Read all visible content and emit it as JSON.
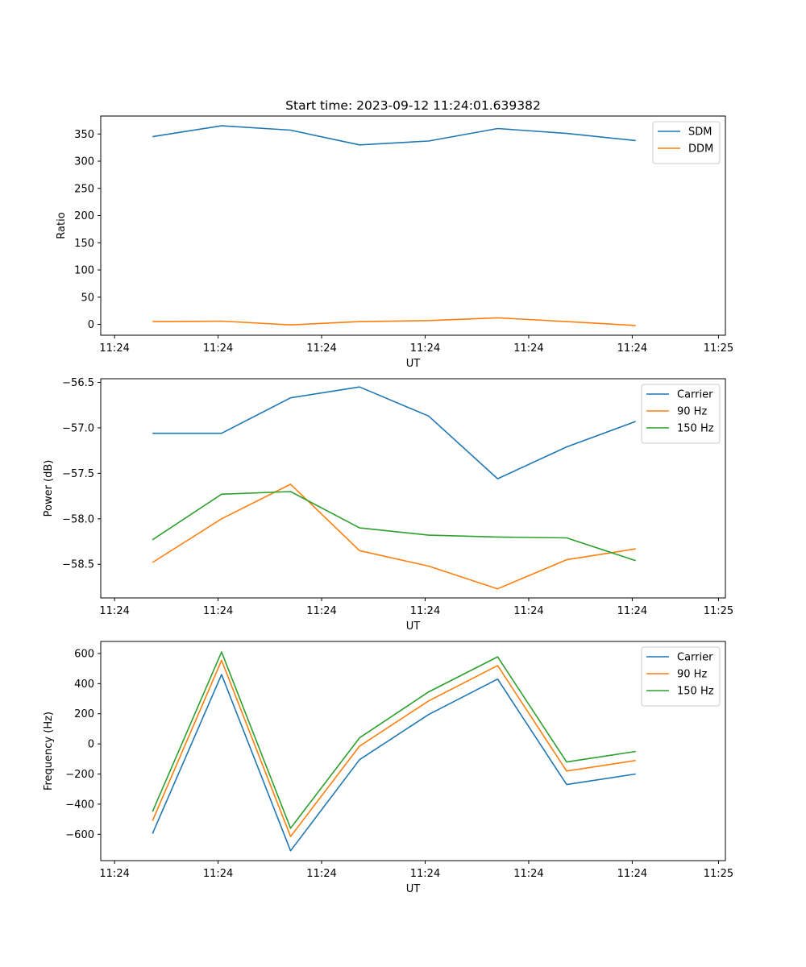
{
  "figure_title": "Start time: 2023-09-12 11:24:01.639382",
  "chart_data": [
    {
      "type": "line",
      "title": "Start time: 2023-09-12 11:24:01.639382",
      "xlabel": "UT",
      "ylabel": "Ratio",
      "x_tick_labels": [
        "11:24",
        "11:24",
        "11:24",
        "11:24",
        "11:24",
        "11:24",
        "11:24"
      ],
      "x_end_tick_label": "11:25",
      "xlim": [
        -0.75,
        8.3
      ],
      "x": [
        0,
        1,
        2,
        3,
        4,
        5,
        6,
        7
      ],
      "ylim": [
        -20,
        383
      ],
      "y_ticks": [
        0,
        50,
        100,
        150,
        200,
        250,
        300,
        350
      ],
      "legend_position": "top-right",
      "series": [
        {
          "name": "SDM",
          "color": "#1f77b4",
          "values": [
            345,
            365,
            357,
            330,
            337,
            360,
            351,
            338
          ]
        },
        {
          "name": "DDM",
          "color": "#ff7f0e",
          "values": [
            5,
            6,
            -1,
            5,
            7,
            12,
            5,
            -2
          ]
        }
      ]
    },
    {
      "type": "line",
      "title": "",
      "xlabel": "UT",
      "ylabel": "Power (dB)",
      "x_tick_labels": [
        "11:24",
        "11:24",
        "11:24",
        "11:24",
        "11:24",
        "11:24",
        "11:24"
      ],
      "x_end_tick_label": "11:25",
      "xlim": [
        -0.75,
        8.3
      ],
      "x": [
        0,
        1,
        2,
        3,
        4,
        5,
        6,
        7
      ],
      "ylim": [
        -58.87,
        -56.46
      ],
      "y_ticks": [
        -58.5,
        -58.0,
        -57.5,
        -57.0,
        -56.5
      ],
      "y_tick_labels": [
        "−58.5",
        "−58.0",
        "−57.5",
        "−57.0",
        "−56.5"
      ],
      "legend_position": "top-right",
      "series": [
        {
          "name": "Carrier",
          "color": "#1f77b4",
          "values": [
            -57.06,
            -57.06,
            -56.67,
            -56.55,
            -56.87,
            -57.56,
            -57.21,
            -56.93
          ]
        },
        {
          "name": "90 Hz",
          "color": "#ff7f0e",
          "values": [
            -58.48,
            -58.0,
            -57.62,
            -58.35,
            -58.52,
            -58.77,
            -58.45,
            -58.33
          ]
        },
        {
          "name": "150 Hz",
          "color": "#2ca02c",
          "values": [
            -58.23,
            -57.73,
            -57.7,
            -58.1,
            -58.18,
            -58.2,
            -58.21,
            -58.46
          ]
        }
      ]
    },
    {
      "type": "line",
      "title": "",
      "xlabel": "UT",
      "ylabel": "Frequency (Hz)",
      "x_tick_labels": [
        "11:24",
        "11:24",
        "11:24",
        "11:24",
        "11:24",
        "11:24",
        "11:24"
      ],
      "x_end_tick_label": "11:25",
      "xlim": [
        -0.75,
        8.3
      ],
      "x": [
        0,
        1,
        2,
        3,
        4,
        5,
        6,
        7
      ],
      "ylim": [
        -775,
        680
      ],
      "y_ticks": [
        -600,
        -400,
        -200,
        0,
        200,
        400,
        600
      ],
      "y_tick_labels": [
        "−600",
        "−400",
        "−200",
        "0",
        "200",
        "400",
        "600"
      ],
      "legend_position": "top-right",
      "series": [
        {
          "name": "Carrier",
          "color": "#1f77b4",
          "values": [
            -595,
            460,
            -710,
            -105,
            195,
            430,
            -270,
            -200
          ]
        },
        {
          "name": "90 Hz",
          "color": "#ff7f0e",
          "values": [
            -510,
            555,
            -615,
            -15,
            285,
            520,
            -180,
            -110
          ]
        },
        {
          "name": "150 Hz",
          "color": "#2ca02c",
          "values": [
            -450,
            610,
            -560,
            40,
            345,
            578,
            -120,
            -50
          ]
        }
      ]
    }
  ]
}
